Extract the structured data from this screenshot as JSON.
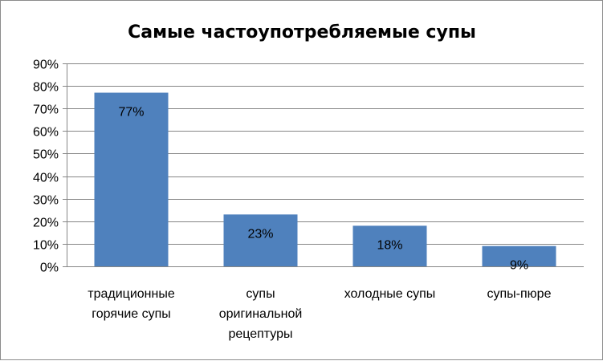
{
  "chart_data": {
    "type": "bar",
    "title": "Самые частоупотребляемые супы",
    "categories": [
      [
        "традиционные",
        "горячие супы"
      ],
      [
        "супы",
        "оригинальной",
        "рецептуры"
      ],
      [
        "холодные супы"
      ],
      [
        "супы-пюре"
      ]
    ],
    "values": [
      77,
      23,
      18,
      9
    ],
    "value_labels": [
      "77%",
      "23%",
      "18%",
      "9%"
    ],
    "y_ticks": [
      "0%",
      "10%",
      "20%",
      "30%",
      "40%",
      "50%",
      "60%",
      "70%",
      "80%",
      "90%"
    ],
    "ylim": [
      0,
      90
    ],
    "y_tick_step": 10,
    "grid": true,
    "legend": "none",
    "bar_color": "#4f81bd",
    "xlabel": "",
    "ylabel": ""
  }
}
